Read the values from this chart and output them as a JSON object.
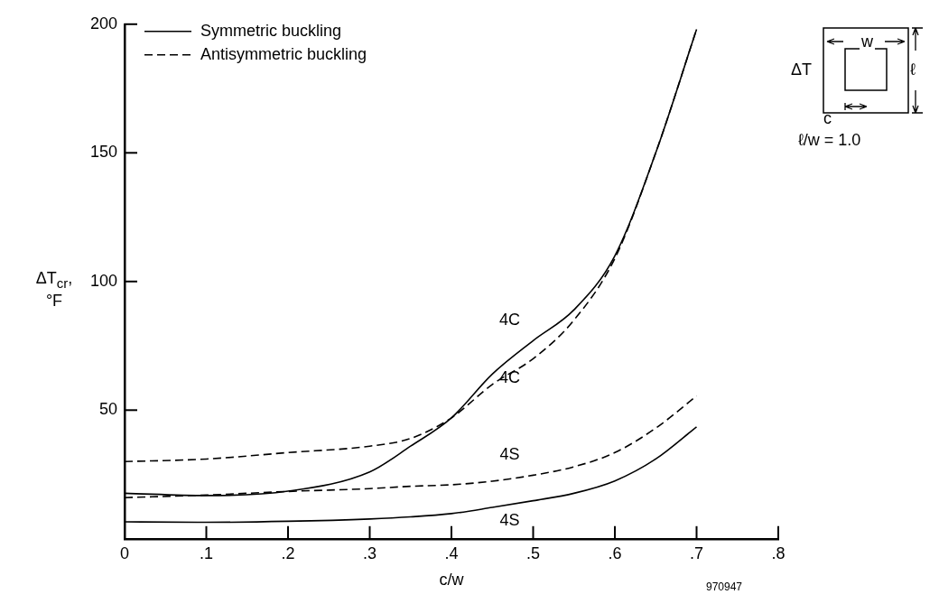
{
  "chart_data": {
    "type": "line",
    "xlabel": "c/w",
    "ylabel": "ΔT$_{cr}$, °F",
    "x": [
      0,
      0.1,
      0.2,
      0.3,
      0.35,
      0.4,
      0.45,
      0.5,
      0.55,
      0.6,
      0.65,
      0.7
    ],
    "series": [
      {
        "name": "Symmetric buckling",
        "color": "#000000",
        "line_style": "solid",
        "values": [
          17.7,
          16.8,
          18.5,
          26,
          36,
          47,
          64,
          77,
          89,
          110,
          150,
          198
        ]
      },
      {
        "name": "Antisymmetric buckling",
        "color": "#000000",
        "line_style": "dashed",
        "values": [
          30,
          31,
          33.5,
          36,
          39,
          47,
          60,
          70,
          85,
          109,
          150,
          198
        ]
      },
      {
        "color": "#000000",
        "line_style": "dashed",
        "values": [
          16,
          17,
          18.4,
          19.5,
          20.4,
          21,
          22.4,
          24.7,
          28,
          33.5,
          43,
          55.5
        ]
      },
      {
        "color": "#000000",
        "line_style": "solid",
        "values": [
          6.6,
          6.4,
          6.8,
          7.7,
          8.5,
          9.8,
          12.2,
          14.8,
          17.7,
          22.5,
          31,
          43.5
        ]
      }
    ],
    "xlim": [
      0,
      0.8
    ],
    "xticks": [
      0,
      {
        "value": 0.1,
        "label": ".1"
      },
      {
        "value": 0.2,
        "label": ".2"
      },
      {
        "value": 0.3,
        "label": ".3"
      },
      {
        "value": 0.4,
        "label": ".4"
      },
      {
        "value": 0.5,
        "label": ".5"
      },
      {
        "value": 0.6,
        "label": ".6"
      },
      {
        "value": 0.7,
        "label": ".7"
      },
      {
        "value": 0.8,
        "label": ".8"
      }
    ],
    "ylim": [
      0,
      200
    ],
    "yticks": [
      50,
      100,
      150,
      200
    ],
    "grid": false,
    "legend": "top left",
    "marker": "none",
    "annotations": [
      "4C",
      "4C",
      "4S",
      "4S",
      "970947",
      "ΔT",
      "w",
      "ℓ",
      "c",
      "ℓ/w = 1.0"
    ]
  }
}
